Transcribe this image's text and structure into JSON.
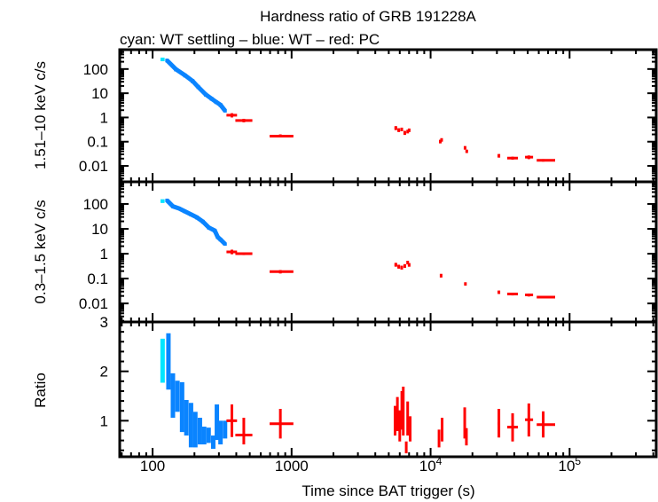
{
  "chart_data": {
    "type": "scatter",
    "title": "Hardness ratio of GRB 191228A",
    "subtitle": "cyan: WT settling – blue: WT – red: PC",
    "xlabel": "Time since BAT trigger (s)",
    "xscale": "log",
    "xlim": [
      58,
      420000
    ],
    "xticks": [
      100,
      1000,
      10000,
      100000
    ],
    "xtick_labels": [
      {
        "base": "100",
        "exp": ""
      },
      {
        "base": "1000",
        "exp": ""
      },
      {
        "base": "10",
        "exp": "4"
      },
      {
        "base": "10",
        "exp": "5"
      }
    ],
    "colors": {
      "wt_settling": "#00e5ff",
      "wt": "#0a84ff",
      "pc": "#ff0000"
    },
    "point_columns": [
      "t",
      "t_min",
      "t_max",
      "y",
      "y_min",
      "y_max"
    ],
    "panels": [
      {
        "ylabel": "1.51–10 keV c/s",
        "yscale": "log",
        "ylim": [
          0.0022,
          630
        ],
        "yticks": [
          100,
          10,
          1,
          0.1,
          0.01
        ],
        "ytick_labels": [
          "100",
          "10",
          "1",
          "0.1",
          "0.01"
        ],
        "series": {
          "wt_settling": [
            [
              118,
              114,
              122,
              250,
              210,
              290
            ]
          ],
          "wt": [
            [
              127,
              124,
              130,
              226,
              190,
              265
            ],
            [
              147,
              144,
              150,
              98,
              80,
              115
            ],
            [
              171,
              168,
              174,
              55,
              45,
              65
            ],
            [
              194,
              191,
              197,
              32,
              26,
              38
            ],
            [
              213,
              210,
              216,
              18,
              15,
              22
            ],
            [
              241,
              238,
              244,
              8.9,
              7.3,
              10.5
            ],
            [
              266,
              263,
              269,
              5.9,
              4.9,
              7
            ],
            [
              286,
              283,
              289,
              4.4,
              3.6,
              5.2
            ],
            [
              308,
              305,
              311,
              3.3,
              2.7,
              3.9
            ],
            [
              332,
              329,
              335,
              1.9,
              1.6,
              2.2
            ]
          ],
          "pc": [
            [
              372,
              340,
              405,
              1.24,
              1.0,
              1.5
            ],
            [
              453,
              394,
              522,
              0.75,
              0.63,
              0.88
            ],
            [
              830,
              695,
              1030,
              0.17,
              0.15,
              0.2
            ],
            [
              5620,
              5500,
              5740,
              0.37,
              0.3,
              0.44
            ],
            [
              5900,
              5780,
              6020,
              0.3,
              0.25,
              0.36
            ],
            [
              6200,
              6080,
              6320,
              0.32,
              0.27,
              0.38
            ],
            [
              6520,
              6400,
              6640,
              0.23,
              0.19,
              0.28
            ],
            [
              6840,
              6720,
              6960,
              0.26,
              0.22,
              0.31
            ],
            [
              7010,
              6900,
              7120,
              0.3,
              0.25,
              0.35
            ],
            [
              11750,
              11550,
              11950,
              0.1,
              0.085,
              0.12
            ],
            [
              12000,
              11800,
              12200,
              0.12,
              0.1,
              0.14
            ],
            [
              17700,
              17500,
              17900,
              0.056,
              0.047,
              0.066
            ],
            [
              18200,
              18000,
              18400,
              0.04,
              0.034,
              0.047
            ],
            [
              31000,
              30400,
              31600,
              0.026,
              0.022,
              0.031
            ],
            [
              38900,
              35600,
              42500,
              0.021,
              0.018,
              0.024
            ],
            [
              50900,
              47800,
              54600,
              0.023,
              0.019,
              0.027
            ],
            [
              64600,
              58000,
              78700,
              0.017,
              0.015,
              0.019
            ]
          ]
        }
      },
      {
        "ylabel": "0.3–1.5 keV c/s",
        "yscale": "log",
        "ylim": [
          0.0018,
          776
        ],
        "yticks": [
          100,
          10,
          1,
          0.1,
          0.01
        ],
        "ytick_labels": [
          "100",
          "10",
          "1",
          "0.1",
          "0.01"
        ],
        "series": {
          "wt_settling": [
            [
              118,
              114,
              122,
              131,
              110,
              150
            ]
          ],
          "wt": [
            [
              127,
              124,
              130,
              139,
              120,
              160
            ],
            [
              140,
              137,
              143,
              80,
              68,
              92
            ],
            [
              155,
              152,
              158,
              66,
              56,
              76
            ],
            [
              171,
              168,
              174,
              50,
              42,
              58
            ],
            [
              189,
              186,
              192,
              38,
              32,
              44
            ],
            [
              208,
              205,
              211,
              29,
              24,
              34
            ],
            [
              230,
              227,
              233,
              19.5,
              16,
              23
            ],
            [
              254,
              251,
              257,
              11.2,
              9.3,
              13
            ],
            [
              280,
              277,
              283,
              8.5,
              7,
              10
            ],
            [
              294,
              291,
              297,
              4.7,
              3.9,
              5.5
            ],
            [
              308,
              305,
              311,
              3.7,
              3.1,
              4.3
            ],
            [
              332,
              329,
              335,
              2.45,
              2.1,
              2.8
            ]
          ],
          "pc": [
            [
              372,
              340,
              405,
              1.18,
              0.95,
              1.45
            ],
            [
              453,
              394,
              522,
              1.0,
              0.88,
              1.13
            ],
            [
              830,
              695,
              1030,
              0.19,
              0.16,
              0.22
            ],
            [
              5620,
              5500,
              5740,
              0.36,
              0.3,
              0.43
            ],
            [
              5900,
              5780,
              6020,
              0.3,
              0.25,
              0.36
            ],
            [
              6200,
              6080,
              6320,
              0.28,
              0.23,
              0.33
            ],
            [
              6520,
              6400,
              6640,
              0.32,
              0.27,
              0.38
            ],
            [
              6840,
              6720,
              6960,
              0.44,
              0.37,
              0.52
            ],
            [
              7010,
              6900,
              7120,
              0.36,
              0.3,
              0.42
            ],
            [
              11900,
              11700,
              12100,
              0.13,
              0.11,
              0.155
            ],
            [
              17800,
              17600,
              18000,
              0.061,
              0.052,
              0.071
            ],
            [
              31000,
              30400,
              31600,
              0.028,
              0.024,
              0.033
            ],
            [
              38900,
              35600,
              42500,
              0.024,
              0.021,
              0.027
            ],
            [
              50900,
              47800,
              54600,
              0.022,
              0.019,
              0.025
            ],
            [
              64600,
              58000,
              78700,
              0.018,
              0.016,
              0.02
            ]
          ]
        }
      },
      {
        "ylabel": "Ratio",
        "yscale": "linear",
        "ylim": [
          0.27,
          3
        ],
        "yticks": [
          1,
          2,
          3
        ],
        "ytick_labels": [
          "1",
          "2",
          "3"
        ],
        "series": {
          "wt_settling": [
            [
              118,
              116,
              120,
              2.2,
              1.77,
              2.66
            ]
          ],
          "wt": [
            [
              130,
              128,
              132,
              2.2,
              1.63,
              2.77
            ],
            [
              140,
              138,
              142,
              1.5,
              1.06,
              1.96
            ],
            [
              151,
              149,
              153,
              1.5,
              1.18,
              1.81
            ],
            [
              163,
              161,
              165,
              1.25,
              0.77,
              1.78
            ],
            [
              175,
              173,
              177,
              1.05,
              0.7,
              1.42
            ],
            [
              189,
              187,
              191,
              0.9,
              0.46,
              1.36
            ],
            [
              203,
              201,
              205,
              0.82,
              0.46,
              1.18
            ],
            [
              219,
              217,
              221,
              0.8,
              0.52,
              1.06
            ],
            [
              235,
              233,
              237,
              0.7,
              0.52,
              0.88
            ],
            [
              253,
              251,
              255,
              0.7,
              0.55,
              0.86
            ],
            [
              273,
              271,
              275,
              0.57,
              0.43,
              0.7
            ],
            [
              290,
              288,
              292,
              0.97,
              0.61,
              1.33
            ],
            [
              308,
              306,
              310,
              0.76,
              0.52,
              1.0
            ],
            [
              332,
              330,
              334,
              0.82,
              0.64,
              1.0
            ]
          ],
          "pc": [
            [
              372,
              340,
              405,
              1.0,
              0.67,
              1.33
            ],
            [
              453,
              394,
              522,
              0.71,
              0.52,
              1.06
            ],
            [
              830,
              695,
              1030,
              0.94,
              0.64,
              1.24
            ],
            [
              5550,
              5500,
              5600,
              1.0,
              0.7,
              1.3
            ],
            [
              5770,
              5720,
              5820,
              1.13,
              0.79,
              1.48
            ],
            [
              6000,
              5950,
              6050,
              0.9,
              0.58,
              1.21
            ],
            [
              6210,
              6160,
              6260,
              1.21,
              0.82,
              1.6
            ],
            [
              6360,
              6310,
              6410,
              1.2,
              0.7,
              1.69
            ],
            [
              6680,
              6600,
              6760,
              0.46,
              0.34,
              0.58
            ],
            [
              6840,
              6790,
              6890,
              1.05,
              0.7,
              1.39
            ],
            [
              7130,
              7080,
              7180,
              0.84,
              0.58,
              1.09
            ],
            [
              11500,
              11400,
              11600,
              0.64,
              0.46,
              0.82
            ],
            [
              12100,
              12000,
              12200,
              0.82,
              0.58,
              1.06
            ],
            [
              17600,
              17500,
              17700,
              0.95,
              0.64,
              1.27
            ],
            [
              18100,
              18000,
              18200,
              0.68,
              0.5,
              0.85
            ],
            [
              31000,
              30400,
              31600,
              0.94,
              0.66,
              1.24
            ],
            [
              38900,
              35600,
              42500,
              0.87,
              0.58,
              1.15
            ],
            [
              50900,
              47800,
              54600,
              1.02,
              0.68,
              1.35
            ],
            [
              64600,
              58000,
              78700,
              0.92,
              0.66,
              1.19
            ]
          ]
        }
      }
    ]
  }
}
